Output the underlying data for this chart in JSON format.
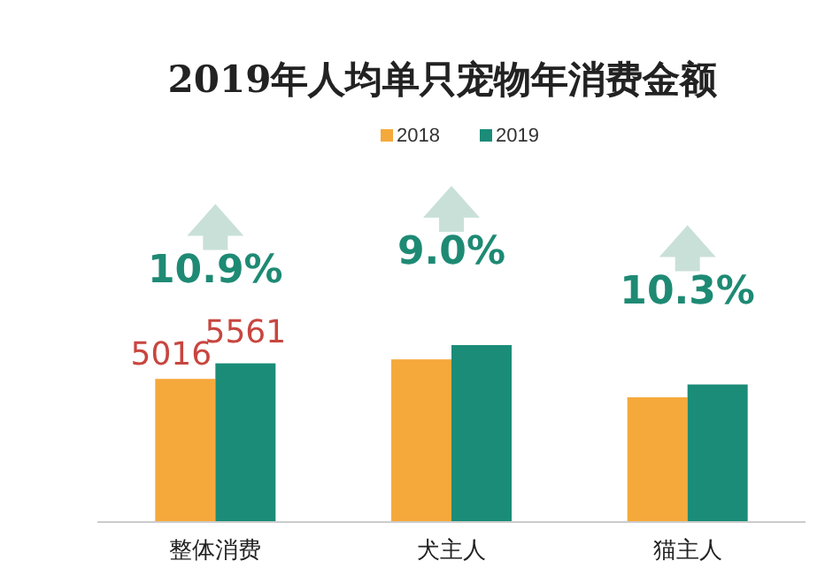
{
  "chart_data": {
    "type": "bar",
    "title": "2019年人均单只宠物年消费金额",
    "categories": [
      "整体消费",
      "犬主人",
      "猫主人"
    ],
    "series": [
      {
        "name": "2018",
        "color": "#f5a93b",
        "values": [
          5016,
          5700,
          4370
        ],
        "value_labels": [
          "5016",
          null,
          null
        ]
      },
      {
        "name": "2019",
        "color": "#1b8c78",
        "values": [
          5561,
          6200,
          4820
        ],
        "value_labels": [
          "5561",
          null,
          null
        ]
      }
    ],
    "annotations": [
      "10.9%",
      "9.0%",
      "10.3%"
    ],
    "legend": "top",
    "grid": false
  }
}
